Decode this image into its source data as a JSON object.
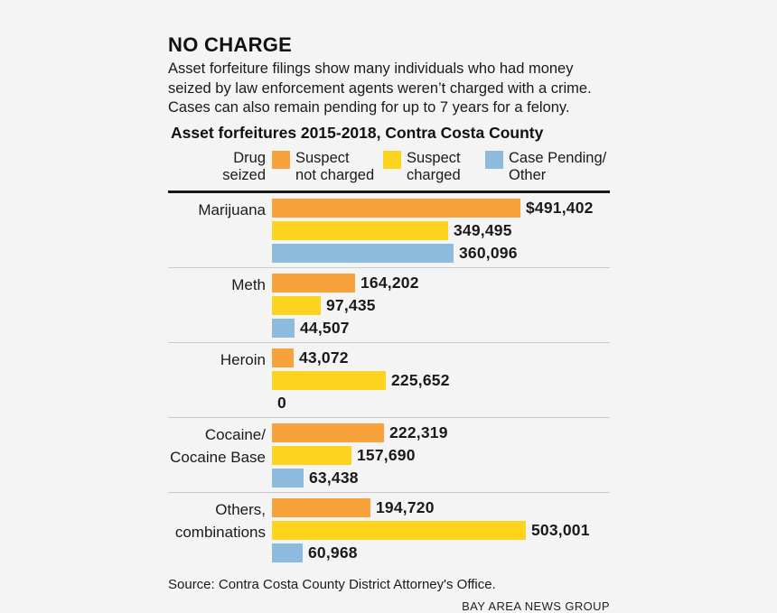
{
  "header": {
    "title": "NO CHARGE",
    "description_lines": [
      "Asset forfeiture filings show many individuals who had money",
      "seized by law enforcement agents weren’t charged with a crime.",
      "Cases can also remain pending for up to 7 years for a felony."
    ]
  },
  "chart": {
    "title": "Asset forfeitures 2015-2018, Contra Costa County",
    "legend_label_lines": [
      "Drug",
      "seized"
    ],
    "legend": [
      {
        "color": "#f8a23c",
        "lines": [
          "Suspect",
          "not charged"
        ]
      },
      {
        "color": "#fcd41d",
        "lines": [
          "Suspect",
          "charged"
        ]
      },
      {
        "color": "#8dbbde",
        "lines": [
          "Case Pending/",
          "Other"
        ]
      }
    ]
  },
  "chart_data": {
    "type": "bar",
    "orientation": "horizontal",
    "title": "Asset forfeitures 2015-2018, Contra Costa County",
    "categories": [
      "Marijuana",
      "Meth",
      "Heroin",
      "Cocaine/Cocaine Base",
      "Others, combinations"
    ],
    "category_label_lines": [
      [
        "Marijuana"
      ],
      [
        "Meth"
      ],
      [
        "Heroin"
      ],
      [
        "Cocaine/",
        "Cocaine Base"
      ],
      [
        "Others,",
        "combinations"
      ]
    ],
    "series": [
      {
        "name": "Suspect not charged",
        "color": "#f8a23c",
        "values": [
          491402,
          164202,
          43072,
          222319,
          194720
        ]
      },
      {
        "name": "Suspect charged",
        "color": "#fcd41d",
        "values": [
          349495,
          97435,
          225652,
          157690,
          503001
        ]
      },
      {
        "name": "Case Pending/Other",
        "color": "#8dbbde",
        "values": [
          360096,
          44507,
          0,
          63438,
          60968
        ]
      }
    ],
    "value_labels": [
      [
        "$491,402",
        "349,495",
        "360,096"
      ],
      [
        "164,202",
        "97,435",
        "44,507"
      ],
      [
        "43,072",
        "225,652",
        "0"
      ],
      [
        "222,319",
        "157,690",
        "63,438"
      ],
      [
        "194,720",
        "503,001",
        "60,968"
      ]
    ],
    "xmax": 503001,
    "grid": false,
    "legend_position": "top"
  },
  "footer": {
    "source": "Source: Contra Costa County District Attorney's Office.",
    "credit": "BAY AREA NEWS GROUP"
  },
  "colors": {
    "background": "#f5f4f5",
    "not_charged": "#f8a23c",
    "charged": "#fcd41d",
    "pending": "#8dbbde",
    "rule": "#161616",
    "divider": "#cbcbcb",
    "text": "#1a1a1a"
  }
}
